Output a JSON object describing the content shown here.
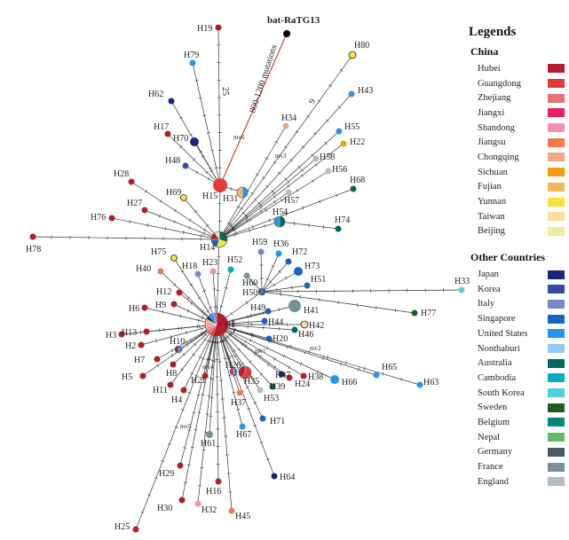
{
  "figure": {
    "legend_title": "Legends",
    "groups": [
      {
        "name": "China",
        "items": [
          {
            "label": "Hubei",
            "color": "#b71c2c"
          },
          {
            "label": "Guangdong",
            "color": "#e53935"
          },
          {
            "label": "Zhejiang",
            "color": "#e57373"
          },
          {
            "label": "Jiangxi",
            "color": "#e91e63"
          },
          {
            "label": "Shandong",
            "color": "#f48fb1"
          },
          {
            "label": "Jiangsu",
            "color": "#f4774f"
          },
          {
            "label": "Chongqing",
            "color": "#f4a582"
          },
          {
            "label": "Sichuan",
            "color": "#f39c12"
          },
          {
            "label": "Fujian",
            "color": "#f7b55a"
          },
          {
            "label": "Yunnan",
            "color": "#f7e23a"
          },
          {
            "label": "Taiwan",
            "color": "#f9df9a"
          },
          {
            "label": "Beijing",
            "color": "#eeeaa0"
          }
        ]
      },
      {
        "name": "Other Countries",
        "items": [
          {
            "label": "Japan",
            "color": "#1a237e"
          },
          {
            "label": "Korea",
            "color": "#3949ab"
          },
          {
            "label": "Italy",
            "color": "#7986cb"
          },
          {
            "label": "Singapore",
            "color": "#1565c0"
          },
          {
            "label": "United States",
            "color": "#2196f3"
          },
          {
            "label": "Nonthaburi",
            "color": "#90caf9"
          },
          {
            "label": "Australia",
            "color": "#00695c"
          },
          {
            "label": "Cambodia",
            "color": "#00acc1"
          },
          {
            "label": "South Korea",
            "color": "#4dd0e1"
          },
          {
            "label": "Sweden",
            "color": "#1b5e20"
          },
          {
            "label": "Belgium",
            "color": "#00897b"
          },
          {
            "label": "Nepal",
            "color": "#66bb6a"
          },
          {
            "label": "Germany",
            "color": "#455a64"
          },
          {
            "label": "France",
            "color": "#78909c"
          },
          {
            "label": "England",
            "color": "#b0bec5"
          }
        ]
      }
    ],
    "edge_labels": {
      "ratg13_edge": "800-1200 mutations",
      "h19_edge": "25",
      "h43_edge": "9"
    },
    "mutation_labels": [
      "mv6",
      "mv3",
      "mv1",
      "mv2",
      "mv4",
      "mv5"
    ],
    "haplotypes": [
      {
        "id": "bat-RaTG13",
        "color": "#000000"
      },
      {
        "id": "H1",
        "color": "#b71c2c"
      },
      {
        "id": "H2",
        "color": "#b71c2c"
      },
      {
        "id": "H3",
        "color": "#b71c2c"
      },
      {
        "id": "H4",
        "color": "#b71c2c"
      },
      {
        "id": "H5",
        "color": "#b71c2c"
      },
      {
        "id": "H6",
        "color": "#b71c2c"
      },
      {
        "id": "H7",
        "color": "#b71c2c"
      },
      {
        "id": "H8",
        "color": "#b71c2c"
      },
      {
        "id": "H9",
        "color": "#b71c2c"
      },
      {
        "id": "H10",
        "color": "#2196f3"
      },
      {
        "id": "H11",
        "color": "#b71c2c"
      },
      {
        "id": "H12",
        "color": "#b71c2c"
      },
      {
        "id": "H13",
        "color": "#b71c2c"
      },
      {
        "id": "H14",
        "color": "#00695c"
      },
      {
        "id": "H15",
        "color": "#e53935"
      },
      {
        "id": "H16",
        "color": "#b71c2c"
      },
      {
        "id": "H17",
        "color": "#b71c2c"
      },
      {
        "id": "H18",
        "color": "#7986cb"
      },
      {
        "id": "H19",
        "color": "#b71c2c"
      },
      {
        "id": "H20",
        "color": "#1565c0"
      },
      {
        "id": "H21",
        "color": "#b71c2c"
      },
      {
        "id": "H22",
        "color": "#f39c12"
      },
      {
        "id": "H23",
        "color": "#f48fb1"
      },
      {
        "id": "H24",
        "color": "#b71c2c"
      },
      {
        "id": "H25",
        "color": "#b71c2c"
      },
      {
        "id": "H26",
        "color": "#e53935"
      },
      {
        "id": "H27",
        "color": "#b71c2c"
      },
      {
        "id": "H28",
        "color": "#b71c2c"
      },
      {
        "id": "H29",
        "color": "#b71c2c"
      },
      {
        "id": "H30",
        "color": "#b71c2c"
      },
      {
        "id": "H31",
        "color": "#2196f3"
      },
      {
        "id": "H32",
        "color": "#f48fb1"
      },
      {
        "id": "H33",
        "color": "#4dd0e1"
      },
      {
        "id": "H34",
        "color": "#f4a582"
      },
      {
        "id": "H35",
        "color": "#2196f3"
      },
      {
        "id": "H36",
        "color": "#2196f3"
      },
      {
        "id": "H37",
        "color": "#f4774f"
      },
      {
        "id": "H38",
        "color": "#b71c2c"
      },
      {
        "id": "H39",
        "color": "#00695c"
      },
      {
        "id": "H40",
        "color": "#f4774f"
      },
      {
        "id": "H41",
        "color": "#78909c"
      },
      {
        "id": "H42",
        "color": "#f9df9a"
      },
      {
        "id": "H43",
        "color": "#2196f3"
      },
      {
        "id": "H44",
        "color": "#1565c0"
      },
      {
        "id": "H45",
        "color": "#f4774f"
      },
      {
        "id": "H46",
        "color": "#00695c"
      },
      {
        "id": "H47",
        "color": "#1a237e"
      },
      {
        "id": "H48",
        "color": "#3949ab"
      },
      {
        "id": "H49",
        "color": "#1565c0"
      },
      {
        "id": "H50",
        "color": "#1565c0"
      },
      {
        "id": "H51",
        "color": "#1565c0"
      },
      {
        "id": "H52",
        "color": "#00acc1"
      },
      {
        "id": "H53",
        "color": "#b0bec5"
      },
      {
        "id": "H54",
        "color": "#00695c"
      },
      {
        "id": "H55",
        "color": "#2196f3"
      },
      {
        "id": "H56",
        "color": "#b0bec5"
      },
      {
        "id": "H57",
        "color": "#b0bec5"
      },
      {
        "id": "H58",
        "color": "#b0bec5"
      },
      {
        "id": "H59",
        "color": "#7986cb"
      },
      {
        "id": "H60",
        "color": "#78909c"
      },
      {
        "id": "H61",
        "color": "#78909c"
      },
      {
        "id": "H62",
        "color": "#1a237e"
      },
      {
        "id": "H63",
        "color": "#2196f3"
      },
      {
        "id": "H64",
        "color": "#1a237e"
      },
      {
        "id": "H65",
        "color": "#2196f3"
      },
      {
        "id": "H66",
        "color": "#2196f3"
      },
      {
        "id": "H67",
        "color": "#2196f3"
      },
      {
        "id": "H68",
        "color": "#00695c"
      },
      {
        "id": "H69",
        "color": "#f7e23a"
      },
      {
        "id": "H70",
        "color": "#1a237e"
      },
      {
        "id": "H71",
        "color": "#1565c0"
      },
      {
        "id": "H72",
        "color": "#1565c0"
      },
      {
        "id": "H73",
        "color": "#1565c0"
      },
      {
        "id": "H74",
        "color": "#00695c"
      },
      {
        "id": "H75",
        "color": "#f7e23a"
      },
      {
        "id": "H76",
        "color": "#b71c2c"
      },
      {
        "id": "H77",
        "color": "#1b5e20"
      },
      {
        "id": "H78",
        "color": "#b71c2c"
      },
      {
        "id": "H79",
        "color": "#2196f3"
      },
      {
        "id": "H80",
        "color": "#f7e23a"
      }
    ]
  }
}
